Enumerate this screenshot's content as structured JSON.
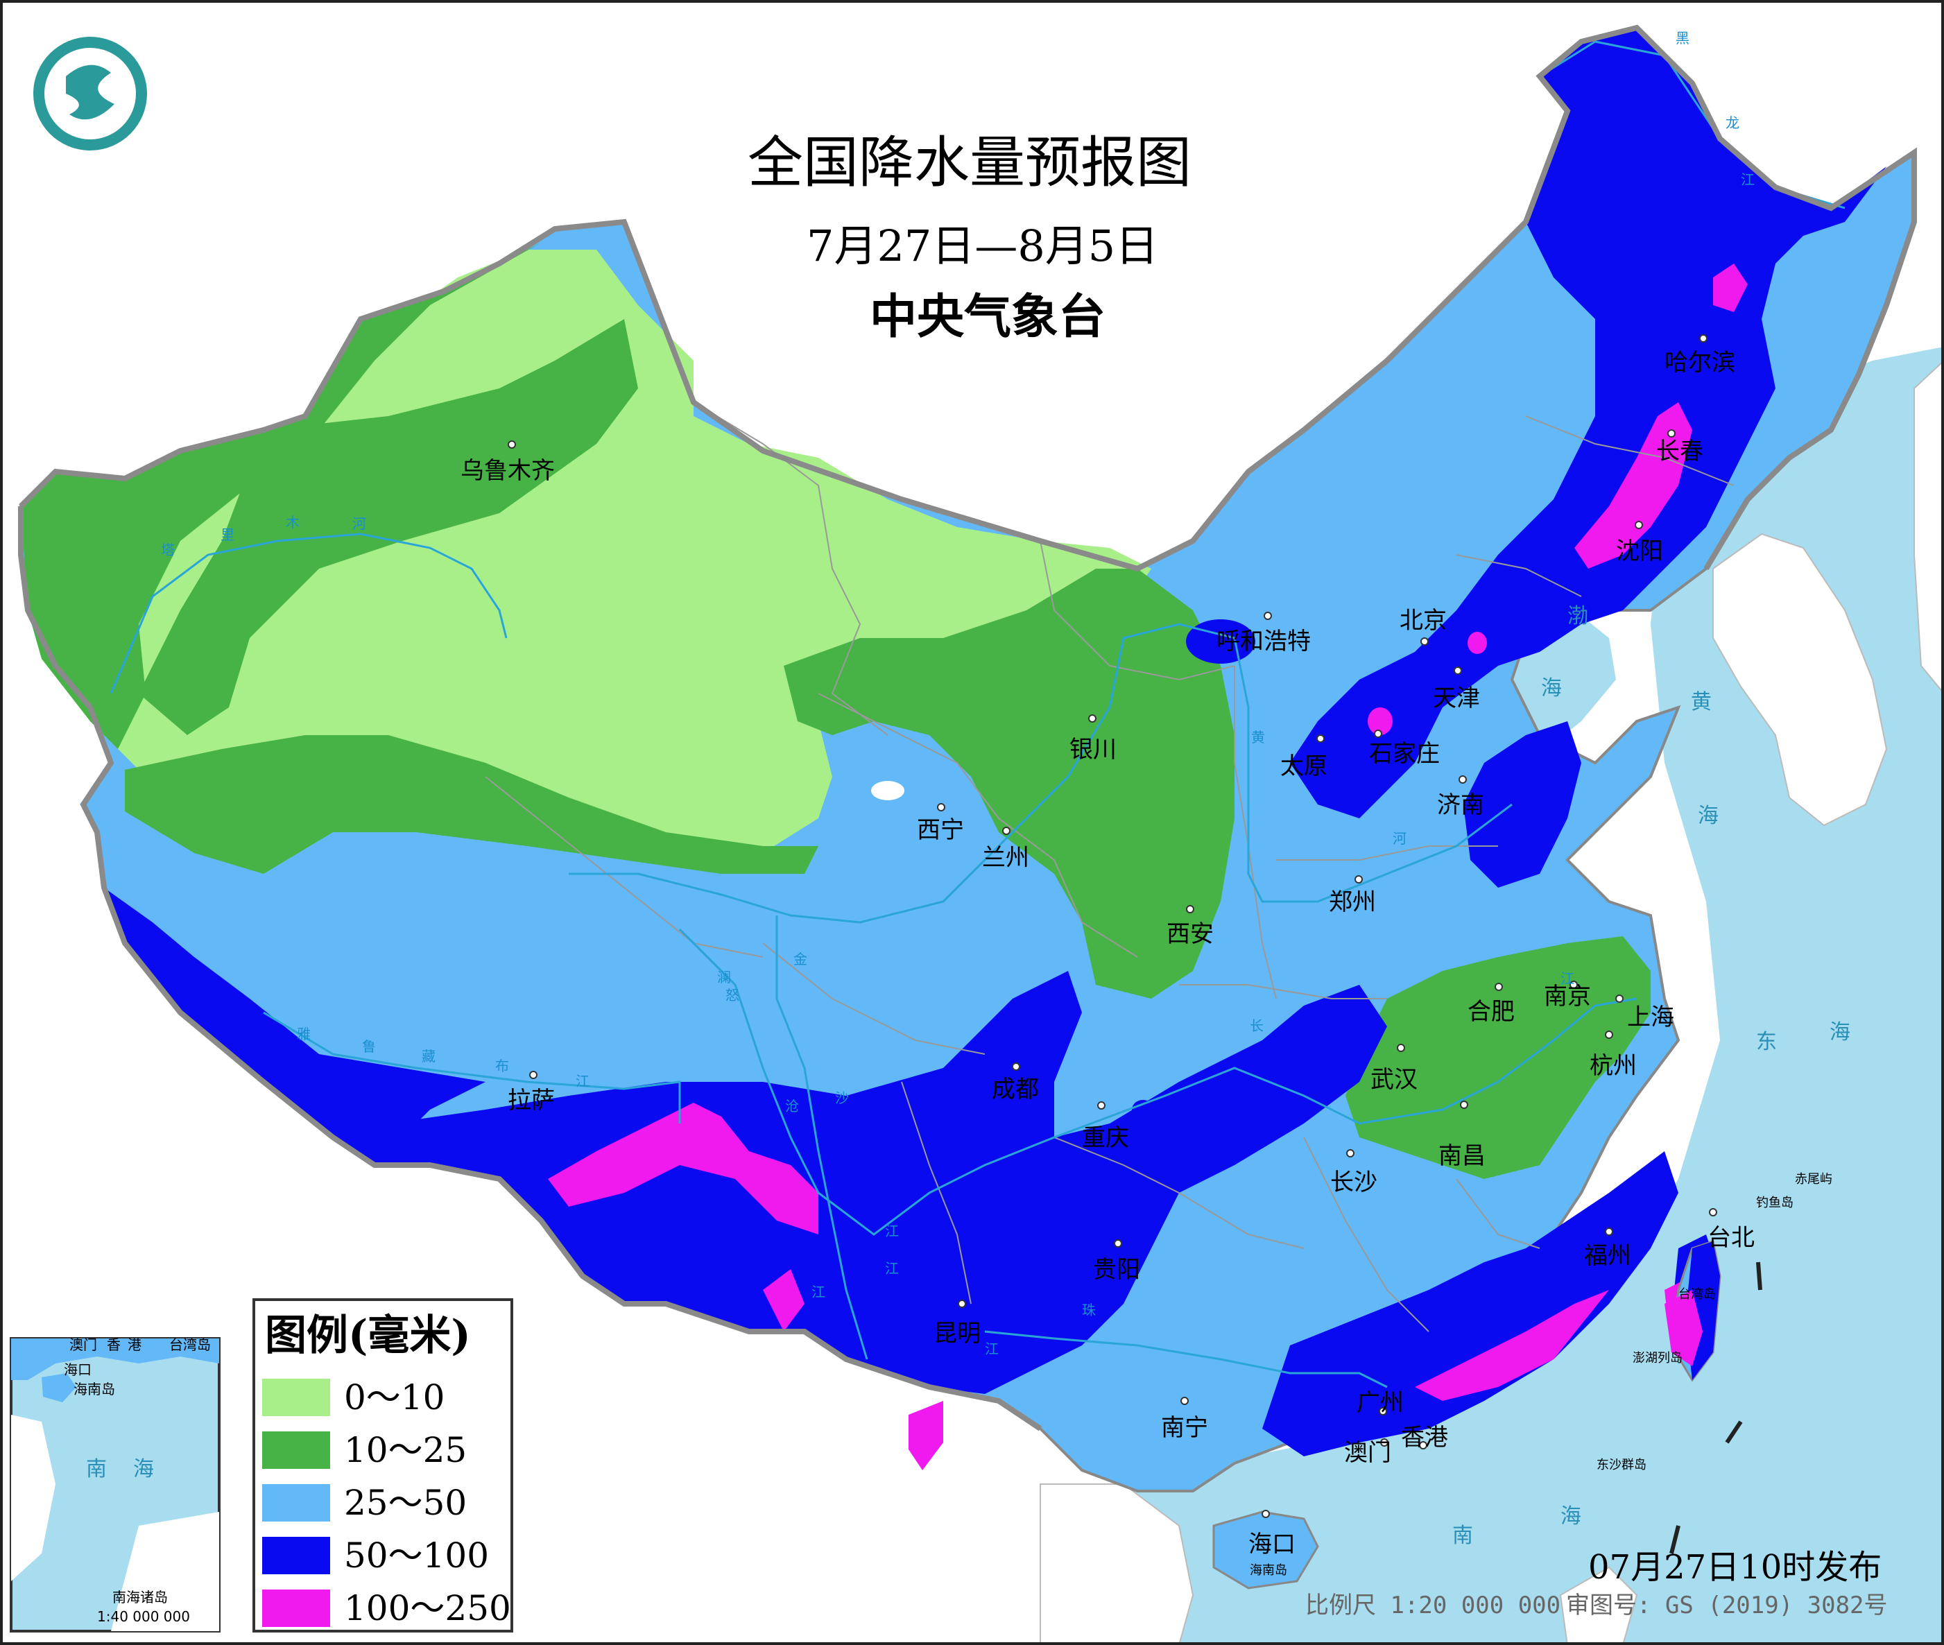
{
  "title": "全国降水量预报图",
  "date_range": "7月27日—8月5日",
  "issuer": "中央气象台",
  "publish_time": "07月27日10时发布",
  "scale_text": "比例尺 1:20 000 000",
  "review_number": "审图号: GS (2019) 3082号",
  "colors": {
    "sea": "#a8dcef",
    "border": "#999999",
    "river": "#2aa5d8",
    "band_0_10": "#a8ef8a",
    "band_10_25": "#47b347",
    "band_25_50": "#63b8f7",
    "band_50_100": "#0a0af0",
    "band_100_250": "#f01aee",
    "logo": "#2a9a9a"
  },
  "legend": {
    "title": "图例(毫米)",
    "items": [
      {
        "label": "0～10",
        "color": "#a8ef8a"
      },
      {
        "label": "10～25",
        "color": "#47b347"
      },
      {
        "label": "25～50",
        "color": "#63b8f7"
      },
      {
        "label": "50～100",
        "color": "#0a0af0"
      },
      {
        "label": "100～250",
        "color": "#f01aee"
      }
    ]
  },
  "cities": [
    {
      "name": "乌鲁木齐"
    },
    {
      "name": "呼和浩特"
    },
    {
      "name": "哈尔滨"
    },
    {
      "name": "长春"
    },
    {
      "name": "沈阳"
    },
    {
      "name": "北京"
    },
    {
      "name": "天津"
    },
    {
      "name": "石家庄"
    },
    {
      "name": "太原"
    },
    {
      "name": "济南"
    },
    {
      "name": "银川"
    },
    {
      "name": "西宁"
    },
    {
      "name": "兰州"
    },
    {
      "name": "西安"
    },
    {
      "name": "郑州"
    },
    {
      "name": "合肥"
    },
    {
      "name": "南京"
    },
    {
      "name": "上海"
    },
    {
      "name": "杭州"
    },
    {
      "name": "武汉"
    },
    {
      "name": "南昌"
    },
    {
      "name": "长沙"
    },
    {
      "name": "成都"
    },
    {
      "name": "重庆"
    },
    {
      "name": "拉萨"
    },
    {
      "name": "贵阳"
    },
    {
      "name": "昆明"
    },
    {
      "name": "南宁"
    },
    {
      "name": "广州"
    },
    {
      "name": "香港"
    },
    {
      "name": "澳门"
    },
    {
      "name": "福州"
    },
    {
      "name": "台北"
    },
    {
      "name": "海口"
    }
  ],
  "seas": [
    "渤",
    "海",
    "黄",
    "海",
    "东",
    "海",
    "南",
    "海"
  ],
  "islands": [
    "赤尾屿",
    "钓鱼岛",
    "台湾岛",
    "澎湖列岛",
    "东沙群岛",
    "海南岛"
  ],
  "rivers": [
    "塔",
    "里",
    "木",
    "河",
    "雅",
    "鲁",
    "藏",
    "布",
    "江",
    "黄",
    "河",
    "长",
    "江",
    "澜",
    "沧",
    "江",
    "金",
    "沙",
    "江",
    "珠",
    "江",
    "怒",
    "江",
    "黑",
    "龙",
    "江"
  ],
  "inset": {
    "labels": [
      "澳门",
      "香",
      "港",
      "台湾岛",
      "海口",
      "海南岛"
    ],
    "sea": [
      "南",
      "海"
    ],
    "name": "南海诸岛",
    "scale": "1:40 000 000"
  }
}
